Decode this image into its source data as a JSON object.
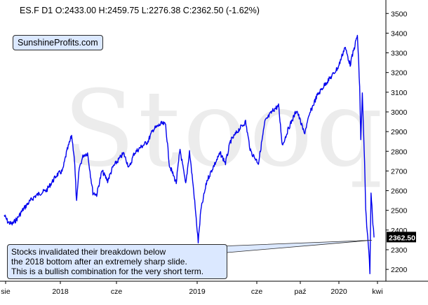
{
  "header": {
    "symbol": "ES.F",
    "interval": "D1",
    "open": "O:2433.00",
    "high": "H:2459.75",
    "low": "L:2276.38",
    "close": "C:2362.50",
    "change": "(-1.62%)"
  },
  "watermark": "Stooq",
  "brand_label": "SunshineProfits.com",
  "annotation": {
    "lines": [
      "Stocks invalidated their breakdown below",
      "the 2018 bottom after an extremely sharp slide.",
      "This is a bullish combination for the very short term."
    ]
  },
  "colors": {
    "series": "#0000ee",
    "price_badge": "#000000",
    "note_bg": "#dbe8ff"
  },
  "chart_data": {
    "type": "line",
    "title": "",
    "xlabel": "",
    "ylabel": "",
    "x_ticks": [
      "sie",
      "2018",
      "cze",
      "2019",
      "cze",
      "paź",
      "2020",
      "kwi"
    ],
    "y_ticks": [
      2200,
      2300,
      2400,
      2500,
      2600,
      2700,
      2800,
      2900,
      3000,
      3100,
      3200,
      3300,
      3400,
      3500
    ],
    "ylim": [
      2140,
      3540
    ],
    "xlim": [
      "2017-08-01",
      "2020-04-25"
    ],
    "grid": false,
    "last_price_label": "2362.50",
    "series": [
      {
        "values": [
          [
            "2017-08-01",
            2475
          ],
          [
            "2017-08-11",
            2440
          ],
          [
            "2017-08-22",
            2430
          ],
          [
            "2017-09-05",
            2460
          ],
          [
            "2017-09-20",
            2505
          ],
          [
            "2017-10-05",
            2540
          ],
          [
            "2017-10-20",
            2570
          ],
          [
            "2017-11-06",
            2590
          ],
          [
            "2017-11-20",
            2600
          ],
          [
            "2017-12-04",
            2640
          ],
          [
            "2017-12-18",
            2680
          ],
          [
            "2018-01-02",
            2700
          ],
          [
            "2018-01-12",
            2790
          ],
          [
            "2018-01-26",
            2880
          ],
          [
            "2018-02-02",
            2770
          ],
          [
            "2018-02-08",
            2540
          ],
          [
            "2018-02-15",
            2715
          ],
          [
            "2018-02-26",
            2780
          ],
          [
            "2018-03-09",
            2790
          ],
          [
            "2018-03-23",
            2590
          ],
          [
            "2018-04-02",
            2580
          ],
          [
            "2018-04-16",
            2700
          ],
          [
            "2018-05-01",
            2650
          ],
          [
            "2018-05-15",
            2720
          ],
          [
            "2018-06-12",
            2790
          ],
          [
            "2018-06-27",
            2715
          ],
          [
            "2018-07-10",
            2790
          ],
          [
            "2018-07-27",
            2820
          ],
          [
            "2018-08-15",
            2850
          ],
          [
            "2018-08-29",
            2910
          ],
          [
            "2018-09-20",
            2940
          ],
          [
            "2018-10-01",
            2935
          ],
          [
            "2018-10-11",
            2730
          ],
          [
            "2018-10-29",
            2640
          ],
          [
            "2018-11-08",
            2810
          ],
          [
            "2018-11-23",
            2630
          ],
          [
            "2018-12-03",
            2800
          ],
          [
            "2018-12-14",
            2600
          ],
          [
            "2018-12-26",
            2340
          ],
          [
            "2019-01-02",
            2500
          ],
          [
            "2019-01-18",
            2650
          ],
          [
            "2019-02-01",
            2710
          ],
          [
            "2019-02-22",
            2790
          ],
          [
            "2019-03-08",
            2740
          ],
          [
            "2019-03-21",
            2850
          ],
          [
            "2019-04-12",
            2910
          ],
          [
            "2019-04-30",
            2950
          ],
          [
            "2019-05-13",
            2800
          ],
          [
            "2019-06-03",
            2740
          ],
          [
            "2019-06-20",
            2950
          ],
          [
            "2019-07-12",
            3010
          ],
          [
            "2019-07-26",
            3030
          ],
          [
            "2019-08-05",
            2830
          ],
          [
            "2019-08-22",
            2920
          ],
          [
            "2019-09-12",
            3010
          ],
          [
            "2019-10-02",
            2890
          ],
          [
            "2019-10-18",
            3000
          ],
          [
            "2019-11-04",
            3080
          ],
          [
            "2019-11-29",
            3150
          ],
          [
            "2019-12-13",
            3180
          ],
          [
            "2019-12-31",
            3230
          ],
          [
            "2020-01-17",
            3330
          ],
          [
            "2020-01-31",
            3240
          ],
          [
            "2020-02-19",
            3390
          ],
          [
            "2020-02-25",
            3130
          ],
          [
            "2020-02-28",
            2860
          ],
          [
            "2020-03-03",
            3090
          ],
          [
            "2020-03-09",
            2740
          ],
          [
            "2020-03-12",
            2500
          ],
          [
            "2020-03-16",
            2390
          ],
          [
            "2020-03-20",
            2300
          ],
          [
            "2020-03-23",
            2190
          ],
          [
            "2020-03-26",
            2600
          ],
          [
            "2020-03-31",
            2430
          ],
          [
            "2020-04-03",
            2362.5
          ]
        ]
      }
    ]
  }
}
